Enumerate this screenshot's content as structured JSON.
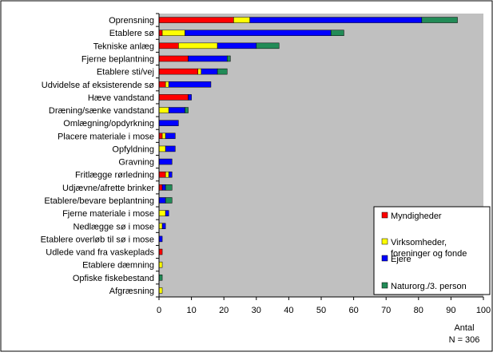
{
  "chart_data": {
    "type": "bar",
    "orientation": "horizontal",
    "stacked": true,
    "categories": [
      "Oprensning",
      "Etablere sø",
      "Tekniske anlæg",
      "Fjerne beplantning",
      "Etablere sti/vej",
      "Udvidelse af eksisterende sø",
      "Hæve vandstand",
      "Dræning/sænke vandstand",
      "Omlægning/opdyrkning",
      "Placere materiale i mose",
      "Opfyldning",
      "Gravning",
      "Fritlægge rørledning",
      "Udjævne/afrette brinker",
      "Etablere/bevare beplantning",
      "Fjerne materiale i mose",
      "Nedlægge sø i mose",
      "Etablere overløb til sø i mose",
      "Udlede vand fra vaskeplads",
      "Etablere dæmning",
      "Opfiske fiskebestand",
      "Afgræsning"
    ],
    "series": [
      {
        "name": "Myndigheder",
        "color": "#ff0000",
        "values": [
          23,
          1,
          6,
          9,
          12,
          2,
          9,
          0,
          0,
          1,
          0,
          0,
          2,
          1,
          0,
          0,
          0,
          0,
          1,
          0,
          0,
          0
        ]
      },
      {
        "name": "Virksomheder, foreninger og fonde",
        "color": "#ffff00",
        "values": [
          5,
          7,
          12,
          0,
          1,
          1,
          0,
          3,
          0,
          1,
          2,
          0,
          1,
          0,
          0,
          2,
          1,
          0,
          0,
          1,
          0,
          1
        ]
      },
      {
        "name": "Ejere",
        "color": "#0000ff",
        "values": [
          53,
          45,
          12,
          12,
          5,
          13,
          1,
          5,
          6,
          3,
          3,
          4,
          1,
          1,
          2,
          1,
          1,
          1,
          0,
          0,
          0,
          0
        ]
      },
      {
        "name": "Naturorg./3. person",
        "color": "#228b57",
        "values": [
          11,
          4,
          7,
          1,
          3,
          0,
          0,
          1,
          0,
          0,
          0,
          0,
          0,
          2,
          2,
          0,
          0,
          0,
          0,
          0,
          1,
          0
        ]
      }
    ],
    "x_ticks": [
      "0",
      "10",
      "20",
      "30",
      "40",
      "50",
      "60",
      "70",
      "80",
      "90",
      "100"
    ],
    "xlim": [
      0,
      100
    ],
    "xlabel": "Antal",
    "note": "N = 306",
    "grid": false,
    "plot_background": "#c0c0c0",
    "legend_position": "inside-bottom-right"
  }
}
